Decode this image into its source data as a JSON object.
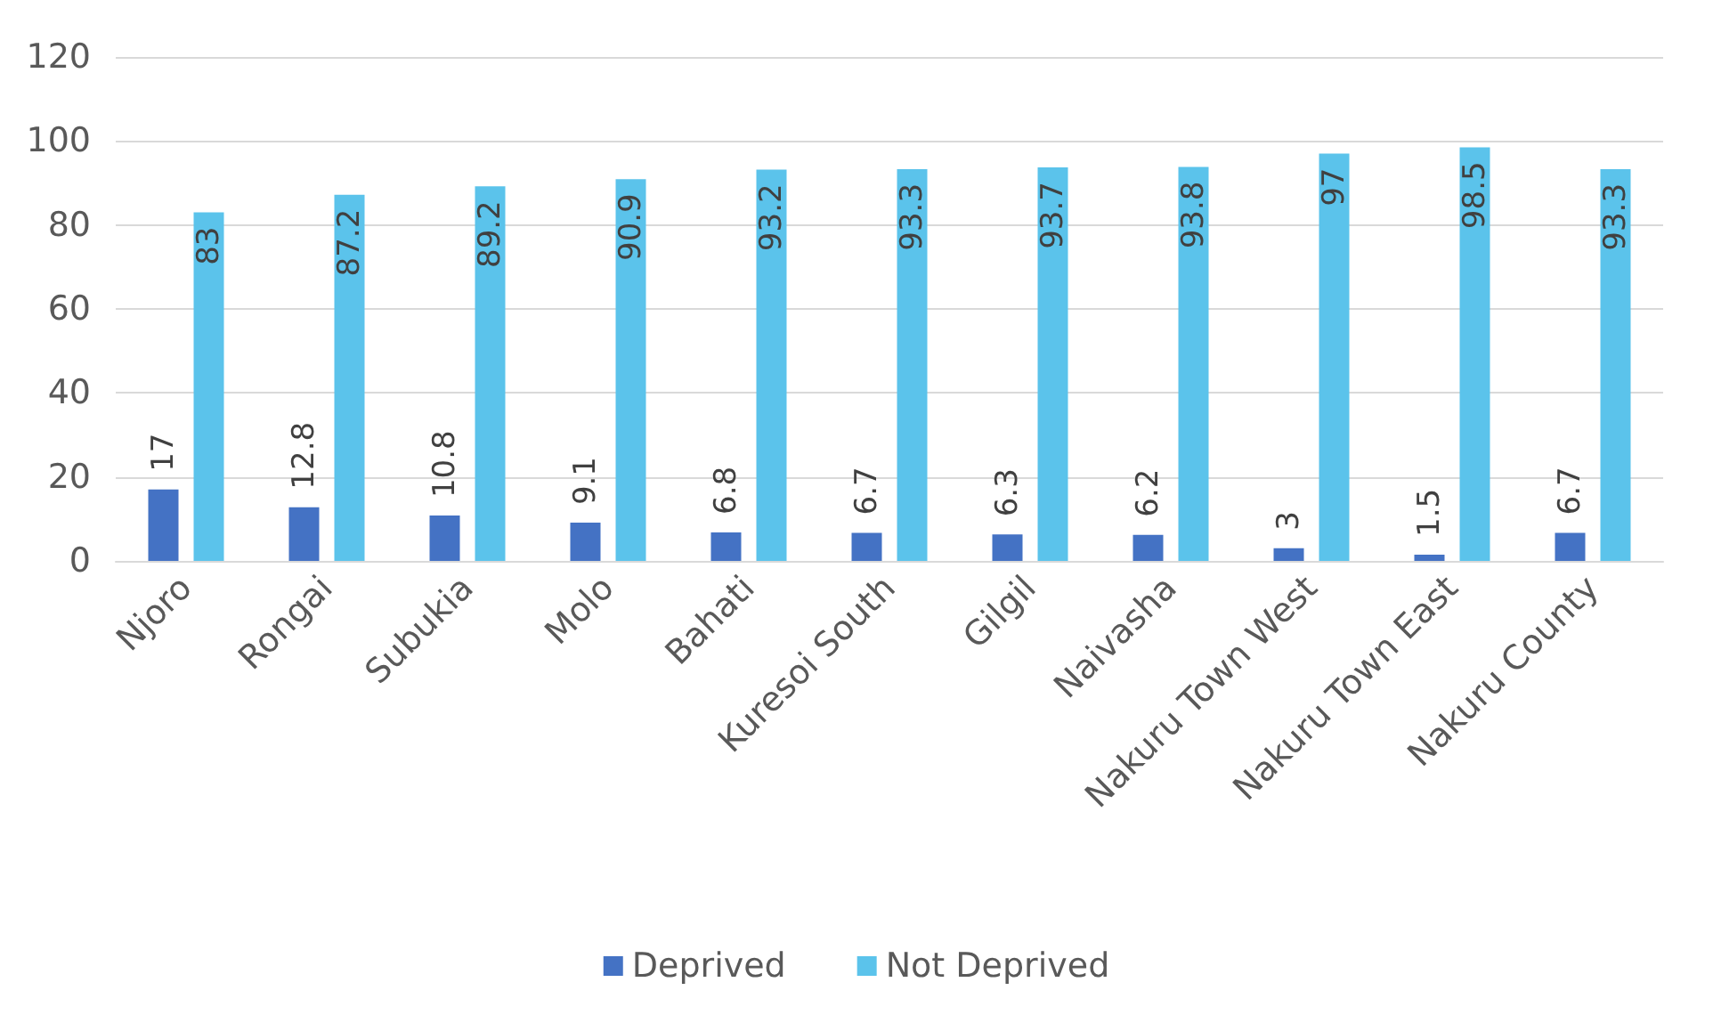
{
  "chart_data": {
    "type": "bar",
    "categories": [
      "Njoro",
      "Rongai",
      "Subukia",
      "Molo",
      "Bahati",
      "Kuresoi South",
      "Gilgil",
      "Naivasha",
      "Nakuru Town West",
      "Nakuru Town East",
      "Nakuru County"
    ],
    "series": [
      {
        "name": "Deprived",
        "color": "#4472c4",
        "values": [
          17,
          12.8,
          10.8,
          9.1,
          6.8,
          6.7,
          6.3,
          6.2,
          3,
          1.5,
          6.7
        ]
      },
      {
        "name": "Not Deprived",
        "color": "#5bc3eb",
        "values": [
          83,
          87.2,
          89.2,
          90.9,
          93.2,
          93.3,
          93.7,
          93.8,
          97,
          98.5,
          93.3
        ]
      }
    ],
    "ylim": [
      0,
      120
    ],
    "yticks": [
      0,
      20,
      40,
      60,
      80,
      100,
      120
    ],
    "grid": "y",
    "legend": "bottom",
    "data_labels": true
  }
}
